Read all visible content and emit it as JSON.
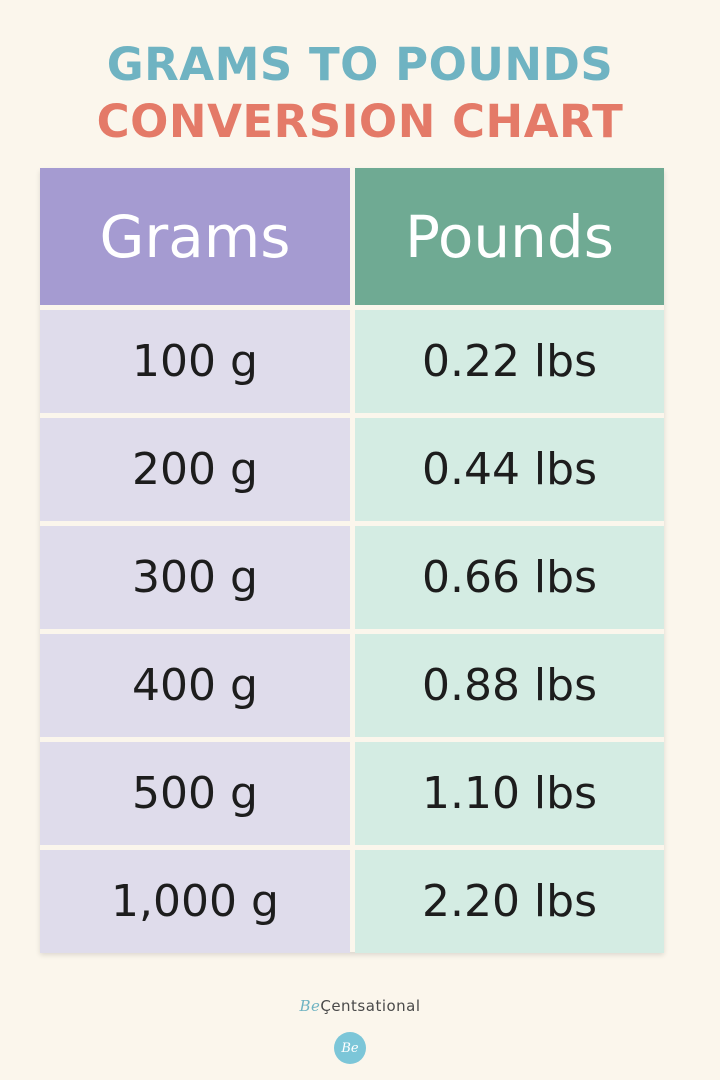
{
  "title_line1": "GRAMS TO POUNDS",
  "title_line2": "CONVERSION CHART",
  "headers": {
    "grams": "Grams",
    "pounds": "Pounds"
  },
  "brand": {
    "prefix": "Be",
    "name": "Çentsational",
    "logo_text": "Be"
  },
  "colors": {
    "title_line1": "#6fb3c2",
    "title_line2": "#e47a68",
    "grams_header": "#a59bd1",
    "pounds_header": "#6faa93",
    "grams_cells": "#dfdceb",
    "pounds_cells": "#d4ece3",
    "background": "#fbf6ec"
  },
  "chart_data": {
    "type": "table",
    "title": "GRAMS TO POUNDS CONVERSION CHART",
    "columns": [
      "Grams",
      "Pounds"
    ],
    "rows": [
      [
        "100 g",
        "0.22 lbs"
      ],
      [
        "200 g",
        "0.44 lbs"
      ],
      [
        "300 g",
        "0.66 lbs"
      ],
      [
        "400 g",
        "0.88 lbs"
      ],
      [
        "500 g",
        "1.10 lbs"
      ],
      [
        "1,000 g",
        "2.20 lbs"
      ]
    ]
  }
}
